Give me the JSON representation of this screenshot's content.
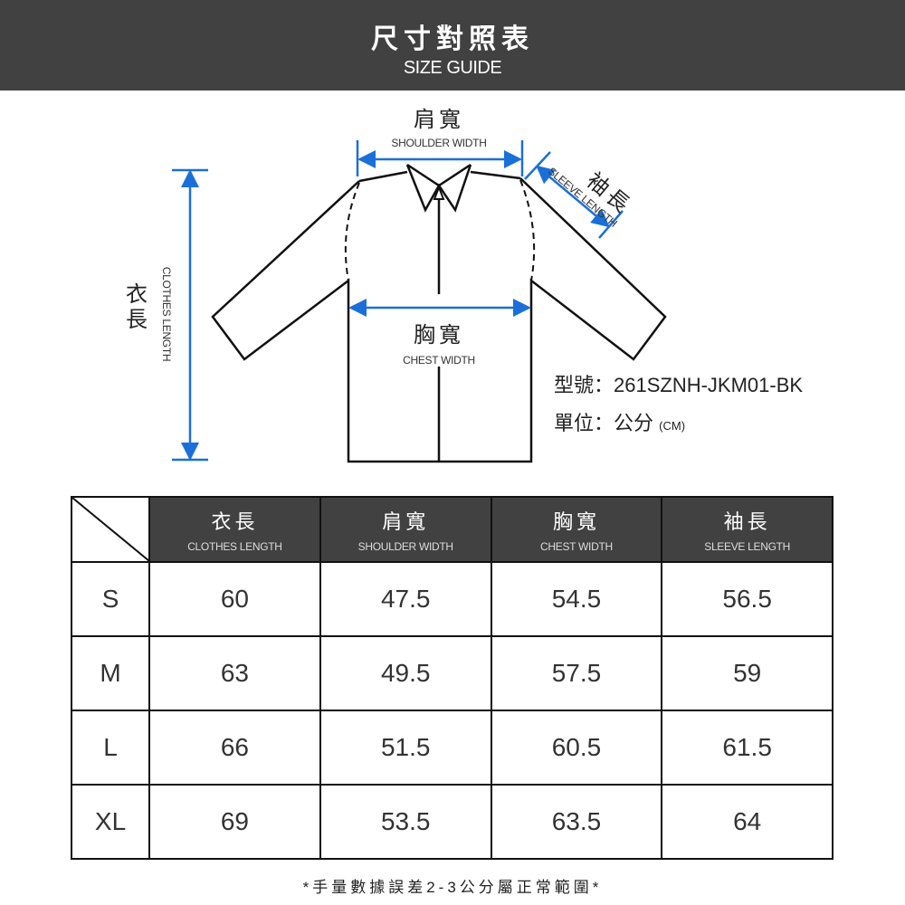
{
  "header": {
    "title_zh": "尺寸對照表",
    "title_en": "SIZE GUIDE"
  },
  "diagram": {
    "shoulder": {
      "zh": "肩寬",
      "en": "SHOULDER WIDTH"
    },
    "sleeve": {
      "zh": "袖長",
      "en": "SLEEVE LENGTH"
    },
    "chest": {
      "zh": "胸寬",
      "en": "CHEST WIDTH"
    },
    "length": {
      "zh": "衣長",
      "en": "CLOTHES LENGTH"
    },
    "arrow_color": "#1a6fd8"
  },
  "info": {
    "model_label": "型號：",
    "model": "261SZNH-JKM01-BK",
    "unit_label": "單位：",
    "unit": "公分",
    "unit_en": "(CM)"
  },
  "table": {
    "columns": [
      {
        "zh": "衣長",
        "en": "CLOTHES LENGTH"
      },
      {
        "zh": "肩寬",
        "en": "SHOULDER WIDTH"
      },
      {
        "zh": "胸寬",
        "en": "CHEST WIDTH"
      },
      {
        "zh": "袖長",
        "en": "SLEEVE LENGTH"
      }
    ],
    "rows": [
      {
        "size": "S",
        "values": [
          "60",
          "47.5",
          "54.5",
          "56.5"
        ]
      },
      {
        "size": "M",
        "values": [
          "63",
          "49.5",
          "57.5",
          "59"
        ]
      },
      {
        "size": "L",
        "values": [
          "66",
          "51.5",
          "60.5",
          "61.5"
        ]
      },
      {
        "size": "XL",
        "values": [
          "69",
          "53.5",
          "63.5",
          "64"
        ]
      }
    ]
  },
  "note": "*手量數據誤差2-3公分屬正常範圍*"
}
